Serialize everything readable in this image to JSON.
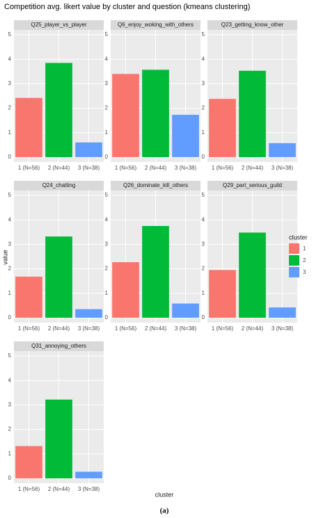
{
  "chart_data": {
    "type": "bar",
    "title": "Competition avg. likert value by cluster and question (kmeans clustering)",
    "x_label": "cluster",
    "y_label": "value",
    "caption": "(a)",
    "categories": [
      "1 (N=56)",
      "2 (N=44)",
      "3 (N=38)"
    ],
    "legend": {
      "title": "cluster",
      "labels": [
        "1",
        "2",
        "3"
      ],
      "colors": [
        "#F8766D",
        "#00BA38",
        "#619CFF"
      ]
    },
    "ylim": [
      -0.2,
      5.2
    ],
    "yticks": [
      0,
      1,
      2,
      3,
      4,
      5
    ],
    "grid": true,
    "facets": [
      {
        "title": "Q25_player_vs_player",
        "values": [
          2.42,
          3.85,
          0.6
        ]
      },
      {
        "title": "Q6_enjoy_woking_with_others",
        "values": [
          3.4,
          3.57,
          1.73
        ]
      },
      {
        "title": "Q23_getting_know_other",
        "values": [
          2.38,
          3.53,
          0.57
        ]
      },
      {
        "title": "Q24_chatting",
        "values": [
          1.68,
          3.32,
          0.35
        ]
      },
      {
        "title": "Q26_dominate_kill_others",
        "values": [
          2.27,
          3.75,
          0.58
        ]
      },
      {
        "title": "Q29_part_serious_guild",
        "values": [
          1.95,
          3.48,
          0.42
        ]
      },
      {
        "title": "Q31_annoying_others",
        "values": [
          1.32,
          3.22,
          0.27
        ]
      }
    ]
  }
}
